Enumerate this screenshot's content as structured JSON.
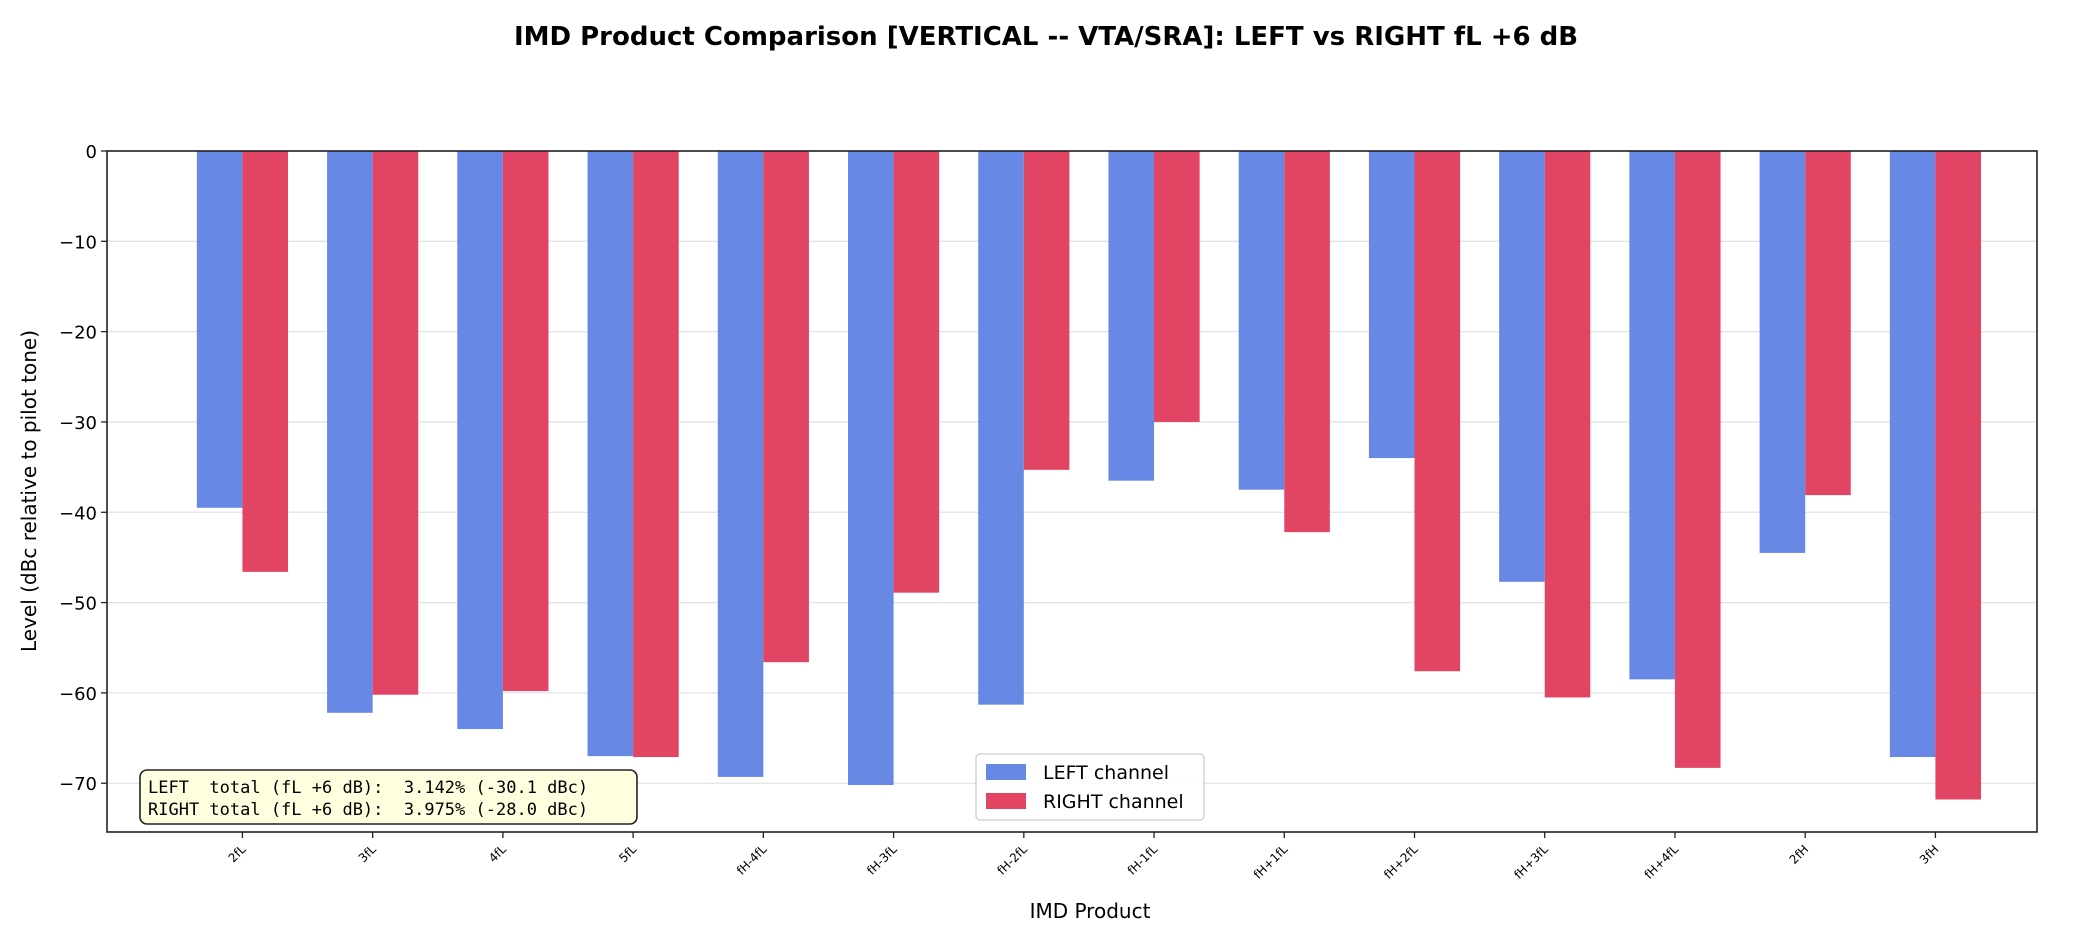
{
  "chart_data": {
    "type": "bar",
    "title": "IMD Product Comparison  [VERTICAL -- VTA/SRA]:  LEFT vs RIGHT  fL +6 dB",
    "xlabel": "IMD Product",
    "ylabel": "Level (dBc relative to pilot tone)",
    "ylim": [
      -75.4,
      0
    ],
    "yticks": [
      0,
      -10,
      -20,
      -30,
      -40,
      -50,
      -60,
      -70
    ],
    "grid": "horizontal",
    "legend_position": "lower-center",
    "categories": [
      "2fL",
      "3fL",
      "4fL",
      "5fL",
      "fH-4fL",
      "fH-3fL",
      "fH-2fL",
      "fH-1fL",
      "fH+1fL",
      "fH+2fL",
      "fH+3fL",
      "fH+4fL",
      "2fH",
      "3fH"
    ],
    "series": [
      {
        "name": "LEFT channel",
        "color": "#6788e5",
        "values": [
          -39.5,
          -62.2,
          -64.0,
          -67.0,
          -69.3,
          -70.2,
          -61.3,
          -36.5,
          -37.5,
          -34.0,
          -47.7,
          -58.5,
          -44.5,
          -67.1
        ]
      },
      {
        "name": "RIGHT channel",
        "color": "#e24464",
        "values": [
          -46.6,
          -60.2,
          -59.8,
          -67.1,
          -56.6,
          -48.9,
          -35.3,
          -30.0,
          -42.2,
          -57.6,
          -60.5,
          -68.3,
          -38.1,
          -71.8
        ]
      }
    ],
    "annotation": [
      "LEFT  total (fL +6 dB):  3.142% (-30.1 dBc)",
      "RIGHT total (fL +6 dB):  3.975% (-28.0 dBc)"
    ]
  }
}
